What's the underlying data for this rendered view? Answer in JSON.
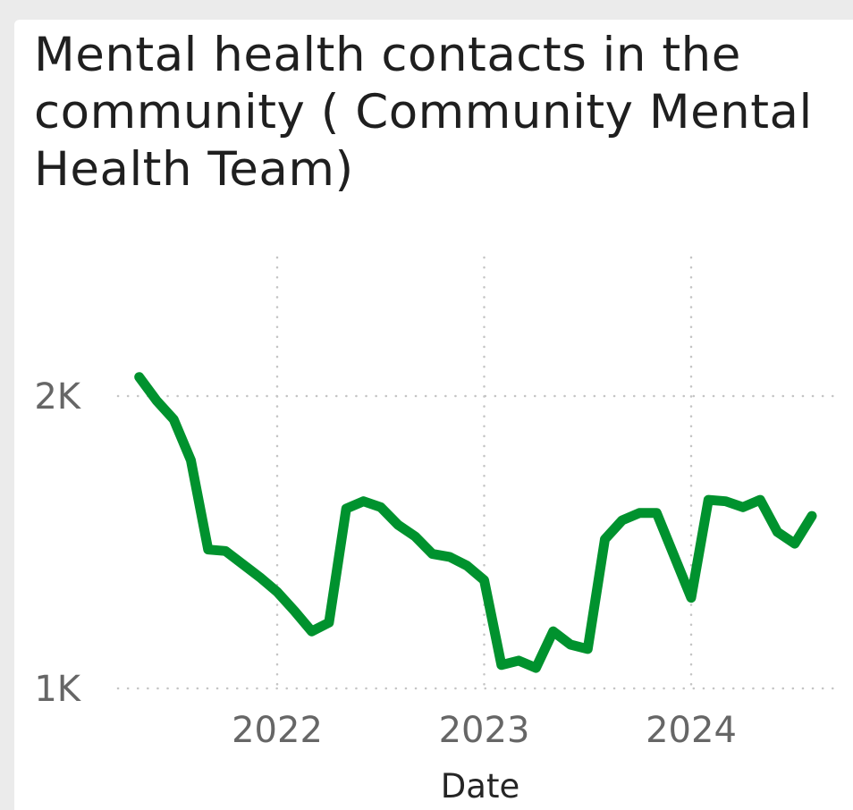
{
  "chart_data": {
    "type": "line",
    "title": "Mental health contacts in the community ( Community Mental Health Team)",
    "xlabel": "Date",
    "ylabel": "",
    "x_ticks": [
      "2022",
      "2023",
      "2024"
    ],
    "y_ticks": [
      "1K",
      "2K"
    ],
    "y_tick_values": [
      1000,
      2000
    ],
    "ylim": [
      1000,
      2000
    ],
    "xlim": [
      "2021-05",
      "2024-08"
    ],
    "grid": true,
    "line_color": "#00922E",
    "series": [
      {
        "x": [
          "2021-05",
          "2021-06",
          "2021-07",
          "2021-08",
          "2021-09",
          "2021-10",
          "2021-11",
          "2021-12",
          "2022-01",
          "2022-02",
          "2022-03",
          "2022-04",
          "2022-05",
          "2022-06",
          "2022-07",
          "2022-08",
          "2022-09",
          "2022-10",
          "2022-11",
          "2022-12",
          "2023-01",
          "2023-02",
          "2023-03",
          "2023-04",
          "2023-05",
          "2023-06",
          "2023-07",
          "2023-08",
          "2023-09",
          "2023-10",
          "2023-11",
          "2023-12",
          "2024-01",
          "2024-02",
          "2024-03",
          "2024-04",
          "2024-05",
          "2024-06",
          "2024-07",
          "2024-08"
        ],
        "values": [
          2065,
          1985,
          1920,
          1780,
          1475,
          1470,
          1425,
          1380,
          1330,
          1265,
          1195,
          1225,
          1615,
          1640,
          1620,
          1560,
          1520,
          1460,
          1450,
          1420,
          1370,
          1080,
          1095,
          1070,
          1195,
          1150,
          1135,
          1510,
          1575,
          1600,
          1600,
          1455,
          1310,
          1645,
          1640,
          1620,
          1645,
          1535,
          1495,
          1590
        ]
      }
    ]
  }
}
